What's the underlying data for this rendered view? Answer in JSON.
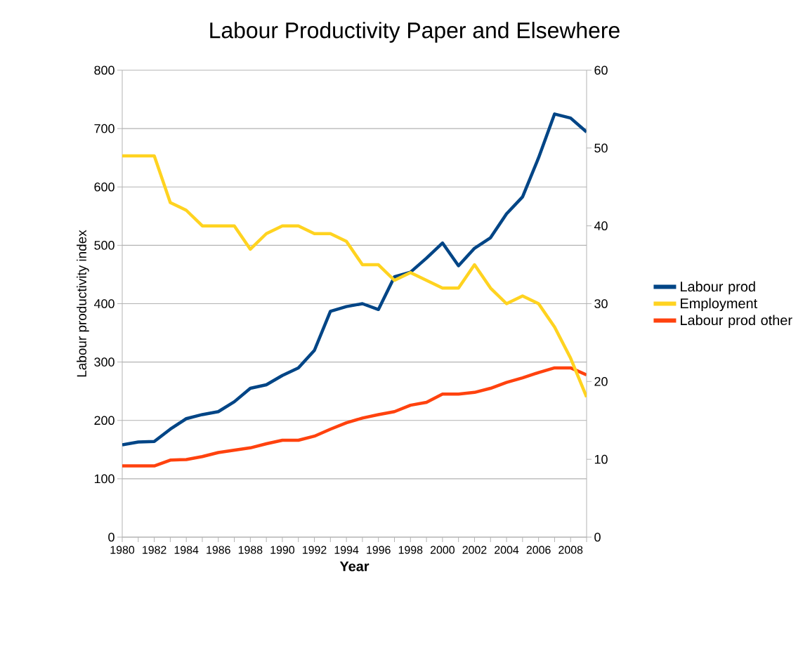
{
  "chart_data": {
    "type": "line",
    "title": "Labour Productivity Paper and Elsewhere",
    "xlabel": "Year",
    "ylabel": "Labour productivity index",
    "x": [
      1980,
      1981,
      1982,
      1983,
      1984,
      1985,
      1986,
      1987,
      1988,
      1989,
      1990,
      1991,
      1992,
      1993,
      1994,
      1995,
      1996,
      1997,
      1998,
      1999,
      2000,
      2001,
      2002,
      2003,
      2004,
      2005,
      2006,
      2007,
      2008,
      2009
    ],
    "series": [
      {
        "name": "Labour prod",
        "color": "#004586",
        "values": [
          158,
          163,
          164,
          185,
          203,
          210,
          215,
          232,
          255,
          261,
          277,
          290,
          320,
          387,
          395,
          400,
          390,
          446,
          454,
          478,
          504,
          465,
          495,
          513,
          554,
          583,
          650,
          725,
          718,
          694
        ]
      },
      {
        "name": "Employment",
        "color": "#ffd320",
        "axis": "y2",
        "values": [
          49,
          49,
          49,
          43,
          42,
          40,
          40,
          40,
          37,
          39,
          40,
          40,
          39,
          39,
          38,
          35,
          35,
          33,
          34,
          33,
          32,
          32,
          35,
          32,
          30,
          31,
          30,
          27,
          23,
          18
        ]
      },
      {
        "name": "Labour prod other",
        "color": "#ff420e",
        "values": [
          122,
          122,
          122,
          132,
          133,
          138,
          145,
          149,
          153,
          160,
          166,
          166,
          173,
          185,
          196,
          204,
          210,
          215,
          226,
          231,
          245,
          245,
          248,
          255,
          265,
          273,
          282,
          290,
          290,
          278
        ]
      }
    ],
    "xlim": [
      1980,
      2009
    ],
    "xticks": [
      1980,
      {
        "value": 1981,
        "label": null
      },
      1982,
      {
        "value": 1983,
        "label": null
      },
      1984,
      {
        "value": 1985,
        "label": null
      },
      1986,
      {
        "value": 1987,
        "label": null
      },
      1988,
      {
        "value": 1989,
        "label": null
      },
      1990,
      {
        "value": 1991,
        "label": null
      },
      1992,
      {
        "value": 1993,
        "label": null
      },
      1994,
      {
        "value": 1995,
        "label": null
      },
      1996,
      {
        "value": 1997,
        "label": null
      },
      1998,
      {
        "value": 1999,
        "label": null
      },
      2000,
      {
        "value": 2001,
        "label": null
      },
      2002,
      {
        "value": 2003,
        "label": null
      },
      2004,
      {
        "value": 2005,
        "label": null
      },
      2006,
      {
        "value": 2007,
        "label": null
      },
      2008,
      {
        "value": 2009,
        "label": null
      }
    ],
    "ylim": [
      0,
      800
    ],
    "yticks": [
      0,
      100,
      200,
      300,
      400,
      500,
      600,
      700,
      800
    ],
    "y2lim": [
      0,
      60
    ],
    "y2ticks": [
      0,
      10,
      20,
      30,
      40,
      50,
      60
    ],
    "grid": "y",
    "legend": "right"
  }
}
